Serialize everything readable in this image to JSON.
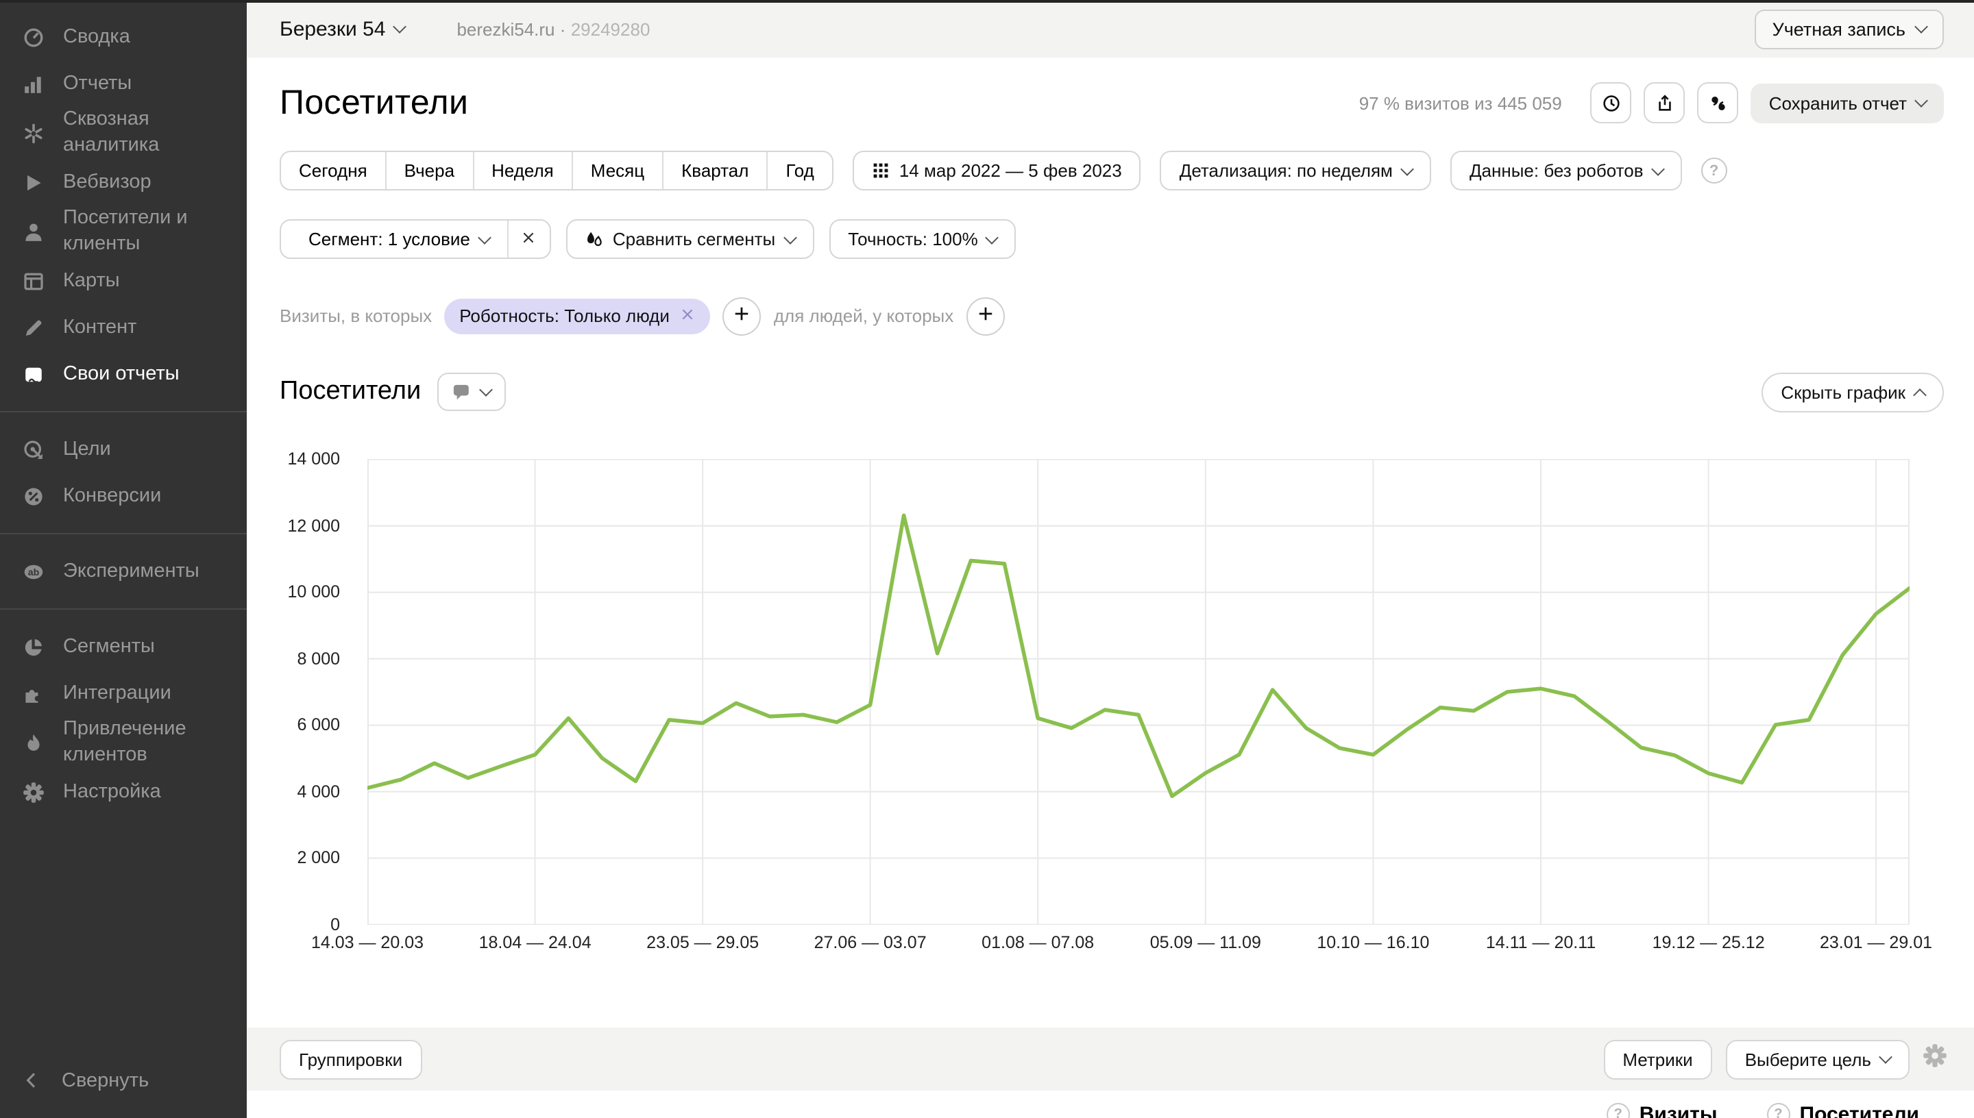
{
  "colors": {
    "line_green": "#8abf4e",
    "chip_bg": "#dcd9f7",
    "sidebar_bg": "#333333",
    "band_bg": "#f3f3f1"
  },
  "topbar": {
    "counter_name": "Березки 54",
    "domain": "berezki54.ru",
    "separator": "·",
    "counter_id": "29249280",
    "account_label": "Учетная запись"
  },
  "sidebar": {
    "collapse_label": "Свернуть",
    "groups": [
      {
        "items": [
          {
            "name": "summary",
            "icon": "speedometer-icon",
            "label": "Сводка"
          },
          {
            "name": "reports",
            "icon": "bar-chart-icon",
            "label": "Отчеты"
          },
          {
            "name": "cross-analytics",
            "icon": "snowflake-icon",
            "label": "Сквозная аналитика"
          },
          {
            "name": "webvisor",
            "icon": "play-icon",
            "label": "Вебвизор"
          },
          {
            "name": "visitors-clients",
            "icon": "person-icon",
            "label": "Посетители и клиенты"
          },
          {
            "name": "maps",
            "icon": "layout-icon",
            "label": "Карты"
          },
          {
            "name": "content",
            "icon": "pencil-icon",
            "label": "Контент"
          },
          {
            "name": "custom-reports",
            "icon": "report-icon",
            "label": "Свои отчеты",
            "active": true
          }
        ]
      },
      {
        "items": [
          {
            "name": "goals",
            "icon": "target-icon",
            "label": "Цели"
          },
          {
            "name": "conversions",
            "icon": "percent-icon",
            "label": "Конверсии"
          }
        ]
      },
      {
        "items": [
          {
            "name": "experiments",
            "icon": "ab-icon",
            "label": "Эксперименты"
          }
        ]
      },
      {
        "items": [
          {
            "name": "segments",
            "icon": "pie-icon",
            "label": "Сегменты"
          },
          {
            "name": "integrations",
            "icon": "puzzle-icon",
            "label": "Интеграции"
          },
          {
            "name": "acquisition",
            "icon": "flame-icon",
            "label": "Привлечение клиентов"
          },
          {
            "name": "settings",
            "icon": "gear-icon",
            "label": "Настройка"
          }
        ]
      }
    ]
  },
  "header": {
    "title": "Посетители",
    "visits_info": "97 % визитов из 445 059",
    "save_report_label": "Сохранить отчет"
  },
  "filters": {
    "period_tabs": [
      {
        "name": "today",
        "label": "Сегодня"
      },
      {
        "name": "yesterday",
        "label": "Вчера"
      },
      {
        "name": "week",
        "label": "Неделя"
      },
      {
        "name": "month",
        "label": "Месяц"
      },
      {
        "name": "quarter",
        "label": "Квартал"
      },
      {
        "name": "year",
        "label": "Год"
      }
    ],
    "date_range": "14 мар 2022 — 5 фев 2023",
    "detail_label": "Детализация: по неделям",
    "data_label": "Данные: без роботов",
    "segment_label": "Сегмент: 1 условие",
    "compare_label": "Сравнить сегменты",
    "accuracy_label": "Точность: 100%"
  },
  "segment_row": {
    "visits_label": "Визиты, в которых",
    "chip_label": "Роботность: Только люди",
    "people_label": "для людей, у которых"
  },
  "section": {
    "title": "Посетители",
    "hide_chart_label": "Скрыть график"
  },
  "chart_data": {
    "type": "line",
    "title": "Посетители",
    "x_unit": "неделя",
    "tick_step": 5,
    "tick_labels": [
      "14.03 — 20.03",
      "18.04 — 24.04",
      "23.05 — 29.05",
      "27.06 — 03.07",
      "01.08 — 07.08",
      "05.09 — 11.09",
      "10.10 — 16.10",
      "14.11 — 20.11",
      "19.12 — 25.12",
      "23.01 — 29.01"
    ],
    "ylim": [
      0,
      14000
    ],
    "y_tick_step": 2000,
    "grid": true,
    "legend": "none",
    "series": [
      {
        "name": "Посетители",
        "color": "#8abf4e",
        "values": [
          4100,
          4350,
          4840,
          4400,
          4760,
          5100,
          6200,
          5000,
          4300,
          6150,
          6050,
          6650,
          6250,
          6300,
          6080,
          6600,
          12300,
          8150,
          10940,
          10850,
          6200,
          5900,
          6450,
          6300,
          3850,
          4550,
          5100,
          7050,
          5900,
          5300,
          5100,
          5850,
          6520,
          6420,
          6990,
          7090,
          6860,
          6100,
          5310,
          5080,
          4540,
          4260,
          6000,
          6150,
          8100,
          9340,
          10110
        ]
      }
    ]
  },
  "bottom": {
    "groupings_label": "Группировки",
    "metrics_label": "Метрики",
    "choose_goal_label": "Выберите цель",
    "col_visits": "Визиты",
    "col_visitors": "Посетители"
  }
}
